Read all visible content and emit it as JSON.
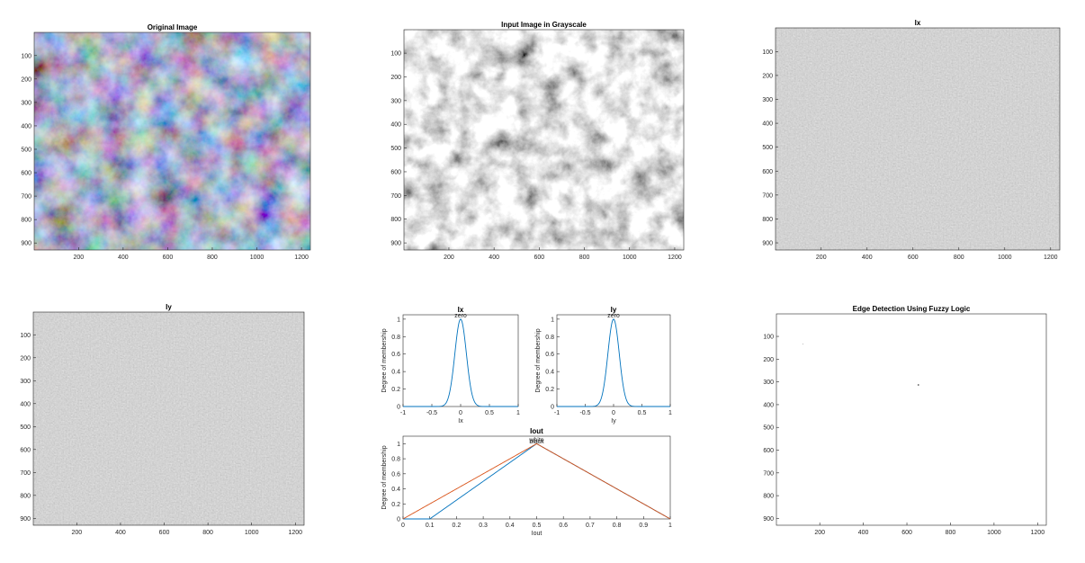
{
  "figure": {
    "panels": [
      {
        "id": "orig",
        "title": "Original Image",
        "kind": "image",
        "palette": "color"
      },
      {
        "id": "gray",
        "title": "Input Image in Grayscale",
        "kind": "image",
        "palette": "gray"
      },
      {
        "id": "ix",
        "title": "Ix",
        "kind": "image",
        "palette": "gradient"
      },
      {
        "id": "iy",
        "title": "Iy",
        "kind": "image",
        "palette": "gradient"
      },
      {
        "id": "edge",
        "title": "Edge Detection Using Fuzzy Logic",
        "kind": "image",
        "palette": "edge"
      }
    ],
    "image_axes": {
      "x_ticks": [
        200,
        400,
        600,
        800,
        1000,
        1200
      ],
      "y_ticks": [
        100,
        200,
        300,
        400,
        500,
        600,
        700,
        800,
        900
      ],
      "x_range": [
        1,
        1240
      ],
      "y_range": [
        1,
        930
      ]
    }
  },
  "chart_data": [
    {
      "type": "line",
      "id": "mf-ix",
      "title": "Ix",
      "xlabel": "Ix",
      "ylabel": "Degree of membership",
      "xlim": [
        -1,
        1
      ],
      "ylim": [
        0,
        1.05
      ],
      "x_ticks": [
        "-1",
        "-0.5",
        "0",
        "0.5",
        "1"
      ],
      "y_ticks": [
        "0",
        "0.2",
        "0.4",
        "0.6",
        "0.8",
        "1"
      ],
      "series": [
        {
          "name": "zero",
          "mf": "gaussmf",
          "params": {
            "sigma": 0.1,
            "center": 0
          },
          "color": "#0072bd"
        }
      ]
    },
    {
      "type": "line",
      "id": "mf-iy",
      "title": "Iy",
      "xlabel": "Iy",
      "ylabel": "Degree of membership",
      "xlim": [
        -1,
        1
      ],
      "ylim": [
        0,
        1.05
      ],
      "x_ticks": [
        "-1",
        "-0.5",
        "0",
        "0.5",
        "1"
      ],
      "y_ticks": [
        "0",
        "0.2",
        "0.4",
        "0.6",
        "0.8",
        "1"
      ],
      "series": [
        {
          "name": "zero",
          "mf": "gaussmf",
          "params": {
            "sigma": 0.1,
            "center": 0
          },
          "color": "#0072bd"
        }
      ]
    },
    {
      "type": "line",
      "id": "mf-iout",
      "title": "Iout",
      "xlabel": "Iout",
      "ylabel": "Degree of membership",
      "xlim": [
        0,
        1
      ],
      "ylim": [
        0,
        1.1
      ],
      "x_ticks": [
        "0",
        "0.1",
        "0.2",
        "0.3",
        "0.4",
        "0.5",
        "0.6",
        "0.7",
        "0.8",
        "0.9",
        "1"
      ],
      "y_ticks": [
        "0",
        "0.2",
        "0.4",
        "0.6",
        "0.8",
        "1"
      ],
      "series": [
        {
          "name": "white",
          "mf": "trimf",
          "params": [
            0.1,
            0.5,
            1
          ],
          "color": "#0072bd"
        },
        {
          "name": "black",
          "mf": "trimf",
          "params": [
            0,
            0.5,
            1
          ],
          "color": "#d95319"
        }
      ]
    }
  ]
}
